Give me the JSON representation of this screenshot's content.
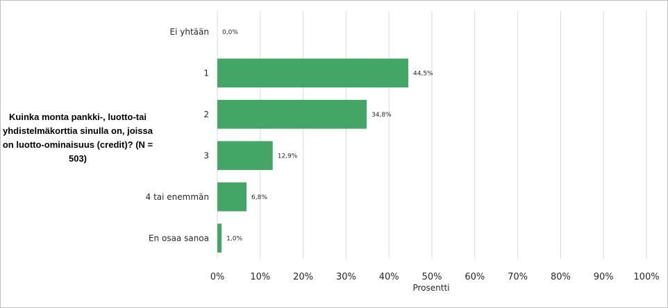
{
  "chart_data": {
    "type": "bar",
    "orientation": "horizontal",
    "title": "Kuinka monta pankki-, luotto-tai yhdistelmäkorttia sinulla on, joissa on luotto-ominaisuus (credit)? (N = 503)",
    "categories": [
      "Ei yhtään",
      "1",
      "2",
      "3",
      "4 tai enemmän",
      "En osaa sanoa"
    ],
    "values": [
      0.0,
      44.5,
      34.8,
      12.9,
      6.8,
      1.0
    ],
    "data_labels": [
      "0,0%",
      "44,5%",
      "34,8%",
      "12,9%",
      "6,8%",
      "1,0%"
    ],
    "xlabel": "Prosentti",
    "ylabel": "",
    "xlim": [
      0,
      100
    ],
    "x_ticks": [
      "0%",
      "10%",
      "20%",
      "30%",
      "40%",
      "50%",
      "60%",
      "70%",
      "80%",
      "90%",
      "100%"
    ],
    "grid": true,
    "legend": "none",
    "bar_color": "#43a566",
    "grid_color": "#d9d9d9"
  }
}
